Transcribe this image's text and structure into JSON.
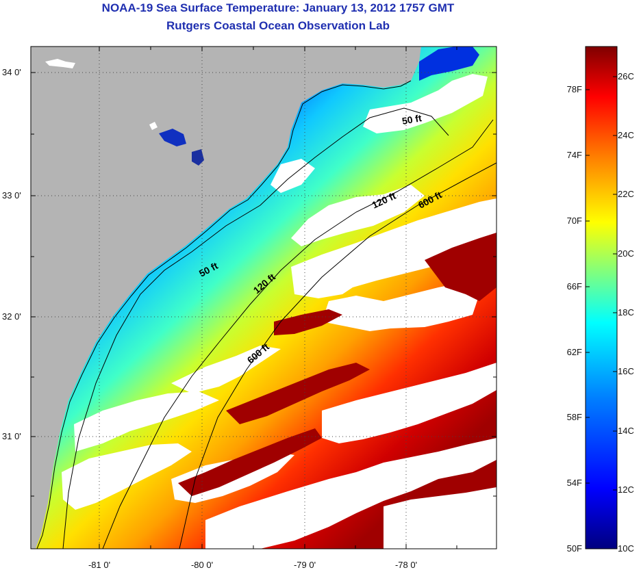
{
  "title": "NOAA-19 Sea Surface Temperature:  January 13, 2012 1757 GMT",
  "subtitle": "Rutgers Coastal Ocean Observation Lab",
  "map": {
    "lat_ticks": [
      "34 0'",
      "33 0'",
      "32 0'",
      "31 0'"
    ],
    "lon_ticks": [
      "-81 0'",
      "-80 0'",
      "-79 0'",
      "-78 0'"
    ],
    "contours": [
      {
        "id": "50ft",
        "labels": [
          "50 ft",
          "50 ft"
        ]
      },
      {
        "id": "120ft",
        "labels": [
          "120 ft",
          "120 ft"
        ]
      },
      {
        "id": "600ft",
        "labels": [
          "600 ft",
          "600 ft"
        ]
      }
    ],
    "colors": {
      "land": "#b4b4b4",
      "cloud": "#ffffff",
      "contour": "#000000",
      "grid": "#555555"
    }
  },
  "colorbar": {
    "f_labels": [
      "78F",
      "74F",
      "70F",
      "66F",
      "62F",
      "58F",
      "54F",
      "50F"
    ],
    "c_labels": [
      "26C",
      "24C",
      "22C",
      "20C",
      "18C",
      "16C",
      "14C",
      "12C",
      "10C"
    ],
    "stops": [
      "#00007f",
      "#0000ff",
      "#007fff",
      "#00ffff",
      "#7fff7f",
      "#ffff00",
      "#ff7f00",
      "#ff0000",
      "#7f0000"
    ]
  }
}
